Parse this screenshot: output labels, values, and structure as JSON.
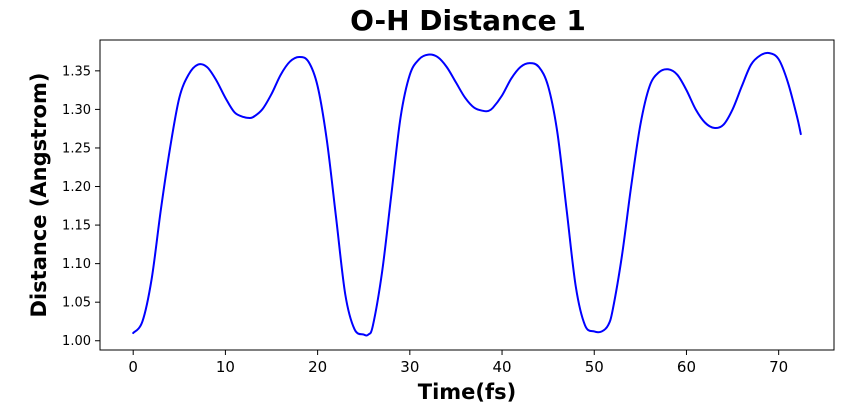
{
  "chart_data": {
    "type": "line",
    "title": "O-H Distance 1",
    "xlabel": "Time(fs)",
    "ylabel": "Distance (Angstrom)",
    "xlim": [
      -3.6,
      76.0
    ],
    "ylim": [
      0.988,
      1.39
    ],
    "xticks": [
      0,
      10,
      20,
      30,
      40,
      50,
      60,
      70
    ],
    "yticks": [
      1.0,
      1.05,
      1.1,
      1.15,
      1.2,
      1.25,
      1.3,
      1.35
    ],
    "ytick_labels": [
      "1.00",
      "1.05",
      "1.10",
      "1.15",
      "1.20",
      "1.25",
      "1.30",
      "1.35"
    ],
    "grid": false,
    "series": [
      {
        "color": "#0000ff",
        "x": [
          0,
          1,
          2,
          3,
          4,
          5,
          6,
          7,
          8,
          9,
          10,
          11,
          12,
          12.5,
          13,
          14,
          15,
          16,
          17,
          18,
          19,
          20,
          21,
          22,
          23,
          24,
          25,
          25.5,
          26,
          27,
          28,
          29,
          30,
          31,
          32,
          33,
          34,
          35,
          36,
          37,
          38,
          38.5,
          39,
          40,
          41,
          42,
          43,
          44,
          45,
          46,
          47,
          48,
          49,
          50,
          50.8,
          51.5,
          52,
          53,
          54,
          55,
          56,
          57,
          58,
          59,
          60,
          61,
          62,
          63,
          64,
          65,
          66,
          67,
          68,
          69,
          70,
          71,
          72,
          72.4
        ],
        "y": [
          1.01,
          1.025,
          1.08,
          1.17,
          1.25,
          1.315,
          1.345,
          1.358,
          1.355,
          1.338,
          1.315,
          1.296,
          1.29,
          1.289,
          1.29,
          1.3,
          1.32,
          1.345,
          1.362,
          1.368,
          1.362,
          1.33,
          1.26,
          1.16,
          1.06,
          1.015,
          1.008,
          1.008,
          1.02,
          1.09,
          1.19,
          1.29,
          1.345,
          1.365,
          1.371,
          1.368,
          1.355,
          1.335,
          1.315,
          1.302,
          1.298,
          1.298,
          1.302,
          1.318,
          1.34,
          1.355,
          1.36,
          1.355,
          1.33,
          1.27,
          1.17,
          1.07,
          1.02,
          1.012,
          1.012,
          1.02,
          1.04,
          1.11,
          1.2,
          1.28,
          1.33,
          1.348,
          1.352,
          1.345,
          1.325,
          1.3,
          1.283,
          1.276,
          1.28,
          1.3,
          1.33,
          1.358,
          1.37,
          1.373,
          1.365,
          1.335,
          1.29,
          1.268
        ]
      }
    ]
  }
}
